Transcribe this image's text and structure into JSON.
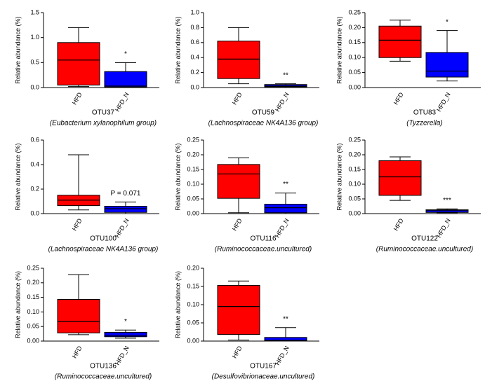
{
  "chart_data": [
    {
      "type": "box",
      "title": "OTU37",
      "subtitle": "(Eubacterium xylanophilum group)",
      "ylabel": "Relative abundance (%)",
      "ylim": [
        0,
        1.5
      ],
      "yticks": [
        {
          "value": 0,
          "label": "0.0"
        },
        0.5,
        {
          "value": 1,
          "label": "1.0"
        },
        1.5
      ],
      "annotation": "*",
      "series": [
        {
          "name": "HFD",
          "color": "#ff0000",
          "min": 0.02,
          "q1": 0.05,
          "median": 0.55,
          "q3": 0.9,
          "max": 1.2
        },
        {
          "name": "HFD_N",
          "color": "#0000ff",
          "min": 0,
          "q1": 0.01,
          "median": 0.03,
          "q3": 0.32,
          "max": 0.5
        }
      ]
    },
    {
      "type": "box",
      "title": "OTU59",
      "subtitle": "(Lachnospiraceae NK4A136 group)",
      "ylabel": "Relative abundance (%)",
      "ylim": [
        0,
        1
      ],
      "yticks": [
        {
          "value": 0,
          "label": "0.0"
        },
        0.2,
        0.4,
        0.6,
        0.8,
        {
          "value": 1,
          "label": "1.0"
        }
      ],
      "annotation": "**",
      "series": [
        {
          "name": "HFD",
          "color": "#ff0000",
          "min": 0.05,
          "q1": 0.12,
          "median": 0.38,
          "q3": 0.62,
          "max": 0.8
        },
        {
          "name": "HFD_N",
          "color": "#0000ff",
          "min": 0,
          "q1": 0.01,
          "median": 0.02,
          "q3": 0.04,
          "max": 0.05
        }
      ]
    },
    {
      "type": "box",
      "title": "OTU83",
      "subtitle": "(Tyzzerella)",
      "ylabel": "Relative abundance (%)",
      "ylim": [
        0,
        0.25
      ],
      "yticks": [
        {
          "value": 0,
          "label": "0.00"
        },
        0.05,
        {
          "value": 0.1,
          "label": "0.10"
        },
        0.15,
        {
          "value": 0.2,
          "label": "0.20"
        },
        0.25
      ],
      "annotation": "*",
      "series": [
        {
          "name": "HFD",
          "color": "#ff0000",
          "min": 0.088,
          "q1": 0.1,
          "median": 0.158,
          "q3": 0.205,
          "max": 0.225
        },
        {
          "name": "HFD_N",
          "color": "#0000ff",
          "min": 0.022,
          "q1": 0.035,
          "median": 0.055,
          "q3": 0.117,
          "max": 0.19
        }
      ]
    },
    {
      "type": "box",
      "title": "OTU100",
      "subtitle": "(Lachnospiraceae NK4A136 group)",
      "ylabel": "Relative abundance (%)",
      "ylim": [
        0,
        0.6
      ],
      "yticks": [
        {
          "value": 0,
          "label": "0.0"
        },
        0.2,
        0.4,
        0.6
      ],
      "annotation": "P = 0.071",
      "series": [
        {
          "name": "HFD",
          "color": "#ff0000",
          "min": 0.03,
          "q1": 0.065,
          "median": 0.11,
          "q3": 0.15,
          "max": 0.48
        },
        {
          "name": "HFD_N",
          "color": "#0000ff",
          "min": 0,
          "q1": 0.01,
          "median": 0.04,
          "q3": 0.06,
          "max": 0.095
        }
      ]
    },
    {
      "type": "box",
      "title": "OTU116",
      "subtitle": "(Ruminococcaceae.uncultured)",
      "ylabel": "Relative abundance (%)",
      "ylim": [
        0,
        0.25
      ],
      "yticks": [
        {
          "value": 0,
          "label": "0.00"
        },
        0.05,
        {
          "value": 0.1,
          "label": "0.10"
        },
        0.15,
        {
          "value": 0.2,
          "label": "0.20"
        },
        0.25
      ],
      "annotation": "**",
      "series": [
        {
          "name": "HFD",
          "color": "#ff0000",
          "min": 0.003,
          "q1": 0.052,
          "median": 0.135,
          "q3": 0.167,
          "max": 0.19
        },
        {
          "name": "HFD_N",
          "color": "#0000ff",
          "min": 0,
          "q1": 0.003,
          "median": 0.02,
          "q3": 0.032,
          "max": 0.07
        }
      ]
    },
    {
      "type": "box",
      "title": "OTU122",
      "subtitle": "(Ruminococcaceae.uncultured)",
      "ylabel": "Relative abundance (%)",
      "ylim": [
        0,
        0.25
      ],
      "yticks": [
        {
          "value": 0,
          "label": "0.00"
        },
        0.05,
        {
          "value": 0.1,
          "label": "0.10"
        },
        0.15,
        {
          "value": 0.2,
          "label": "0.20"
        },
        0.25
      ],
      "annotation": "***",
      "series": [
        {
          "name": "HFD",
          "color": "#ff0000",
          "min": 0.045,
          "q1": 0.062,
          "median": 0.125,
          "q3": 0.18,
          "max": 0.193
        },
        {
          "name": "HFD_N",
          "color": "#0000ff",
          "min": 0.003,
          "q1": 0.004,
          "median": 0.01,
          "q3": 0.013,
          "max": 0.016
        }
      ]
    },
    {
      "type": "box",
      "title": "OTU136",
      "subtitle": "(Ruminococcaceae.uncultured)",
      "ylabel": "Relative abundance (%)",
      "ylim": [
        0,
        0.25
      ],
      "yticks": [
        {
          "value": 0,
          "label": "0.00"
        },
        0.05,
        {
          "value": 0.1,
          "label": "0.10"
        },
        0.15,
        {
          "value": 0.2,
          "label": "0.20"
        },
        0.25
      ],
      "annotation": "*",
      "series": [
        {
          "name": "HFD",
          "color": "#ff0000",
          "min": 0.022,
          "q1": 0.028,
          "median": 0.067,
          "q3": 0.143,
          "max": 0.228
        },
        {
          "name": "HFD_N",
          "color": "#0000ff",
          "min": 0.01,
          "q1": 0.015,
          "median": 0.02,
          "q3": 0.03,
          "max": 0.038
        }
      ]
    },
    {
      "type": "box",
      "title": "OTU167",
      "subtitle": "(Desulfovibrionaceae.uncultured)",
      "ylabel": "Relative abundance (%)",
      "ylim": [
        0,
        0.2
      ],
      "yticks": [
        {
          "value": 0,
          "label": "0.00"
        },
        0.05,
        {
          "value": 0.1,
          "label": "0.10"
        },
        0.15,
        {
          "value": 0.2,
          "label": "0.20"
        }
      ],
      "annotation": "**",
      "series": [
        {
          "name": "HFD",
          "color": "#ff0000",
          "min": 0.003,
          "q1": 0.018,
          "median": 0.095,
          "q3": 0.153,
          "max": 0.165
        },
        {
          "name": "HFD_N",
          "color": "#0000ff",
          "min": 0,
          "q1": 0,
          "median": 0.002,
          "q3": 0.01,
          "max": 0.037
        }
      ]
    }
  ]
}
